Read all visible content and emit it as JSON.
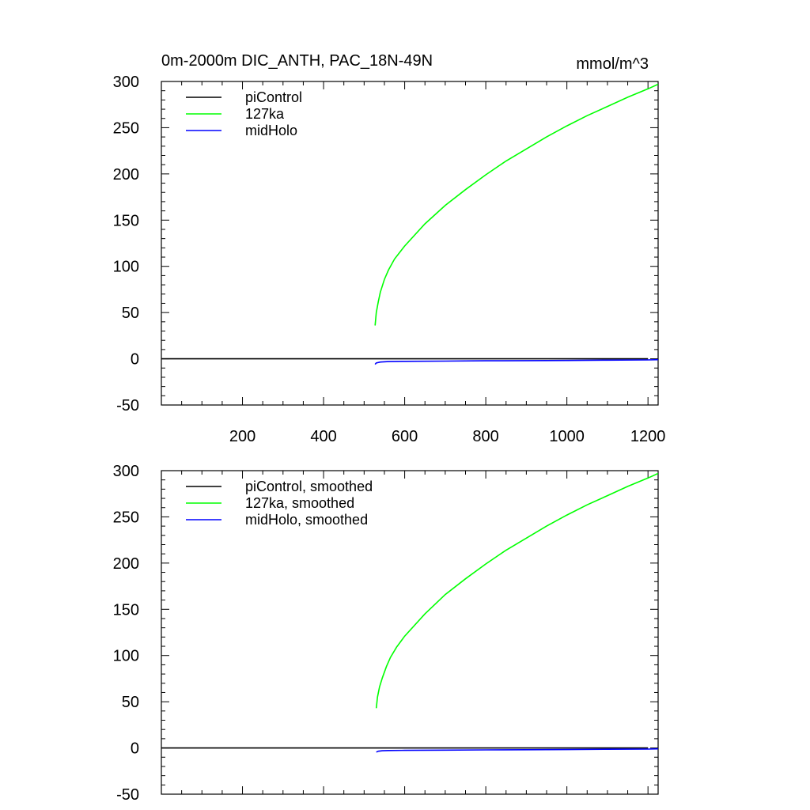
{
  "figure": {
    "title_left": "0m-2000m DIC_ANTH, PAC_18N-49N",
    "title_right": "mmol/m^3"
  },
  "colors": {
    "piControl": "#000000",
    "127ka": "#00ff00",
    "midHolo": "#0000ff"
  },
  "chart_data": [
    {
      "type": "line",
      "xlim": [
        0,
        1225
      ],
      "ylim": [
        -50,
        300
      ],
      "xticks": [
        200,
        400,
        600,
        800,
        1000,
        1200
      ],
      "xtick_labels": [
        "200",
        "400",
        "600",
        "800",
        "1000",
        "1200"
      ],
      "yticks": [
        -50,
        0,
        50,
        100,
        150,
        200,
        250,
        300
      ],
      "ytick_labels": [
        "-50",
        "0",
        "50",
        "100",
        "150",
        "200",
        "250",
        "300"
      ],
      "legend_position": "top-left",
      "series": [
        {
          "name": "piControl",
          "color": "#000000",
          "x": [
            1,
            100,
            200,
            300,
            400,
            500,
            600,
            700,
            800,
            900,
            1000,
            1100,
            1200
          ],
          "y": [
            0,
            0,
            0,
            0,
            0,
            0,
            0,
            0,
            0,
            0,
            0,
            0,
            0
          ]
        },
        {
          "name": "127ka",
          "color": "#00ff00",
          "x": [
            527,
            530,
            535,
            540,
            550,
            560,
            575,
            600,
            650,
            700,
            750,
            800,
            850,
            900,
            950,
            1000,
            1050,
            1100,
            1150,
            1200,
            1225
          ],
          "y": [
            36,
            50,
            62,
            72,
            86,
            96,
            108,
            122,
            146,
            166,
            183,
            199,
            214,
            227,
            240,
            252,
            263,
            273,
            283,
            292,
            297
          ]
        },
        {
          "name": "midHolo",
          "color": "#0000ff",
          "x": [
            527,
            530,
            540,
            560,
            600,
            700,
            800,
            900,
            1000,
            1100,
            1200,
            1225
          ],
          "y": [
            -6,
            -4.5,
            -3.5,
            -3,
            -2.8,
            -2.5,
            -2.2,
            -2,
            -1.8,
            -1.5,
            -1.2,
            -1
          ]
        }
      ]
    },
    {
      "type": "line",
      "xlim": [
        0,
        1225
      ],
      "ylim": [
        -50,
        300
      ],
      "xticks": [
        200,
        400,
        600,
        800,
        1000,
        1200
      ],
      "xtick_labels": [],
      "yticks": [
        -50,
        0,
        50,
        100,
        150,
        200,
        250,
        300
      ],
      "ytick_labels": [
        "-50",
        "0",
        "50",
        "100",
        "150",
        "200",
        "250",
        "300"
      ],
      "legend_position": "top-left",
      "series": [
        {
          "name": "piControl, smoothed",
          "color": "#000000",
          "x": [
            1,
            100,
            200,
            300,
            400,
            500,
            600,
            700,
            800,
            900,
            1000,
            1100,
            1200
          ],
          "y": [
            0,
            0,
            0,
            0,
            0,
            0,
            0,
            0,
            0,
            0,
            0,
            0,
            0
          ]
        },
        {
          "name": "127ka, smoothed",
          "color": "#00ff00",
          "x": [
            530,
            533,
            538,
            545,
            555,
            565,
            580,
            600,
            650,
            700,
            750,
            800,
            850,
            900,
            950,
            1000,
            1050,
            1100,
            1150,
            1200,
            1225
          ],
          "y": [
            43,
            55,
            66,
            76,
            88,
            98,
            109,
            121,
            145,
            166,
            183,
            199,
            214,
            227,
            240,
            252,
            263,
            273,
            283,
            292,
            297
          ]
        },
        {
          "name": "midHolo, smoothed",
          "color": "#0000ff",
          "x": [
            530,
            535,
            545,
            560,
            600,
            700,
            800,
            900,
            1000,
            1100,
            1200,
            1225
          ],
          "y": [
            -4.5,
            -3.5,
            -3,
            -2.8,
            -2.6,
            -2.3,
            -2.1,
            -1.9,
            -1.7,
            -1.4,
            -1.2,
            -1
          ]
        }
      ]
    }
  ]
}
